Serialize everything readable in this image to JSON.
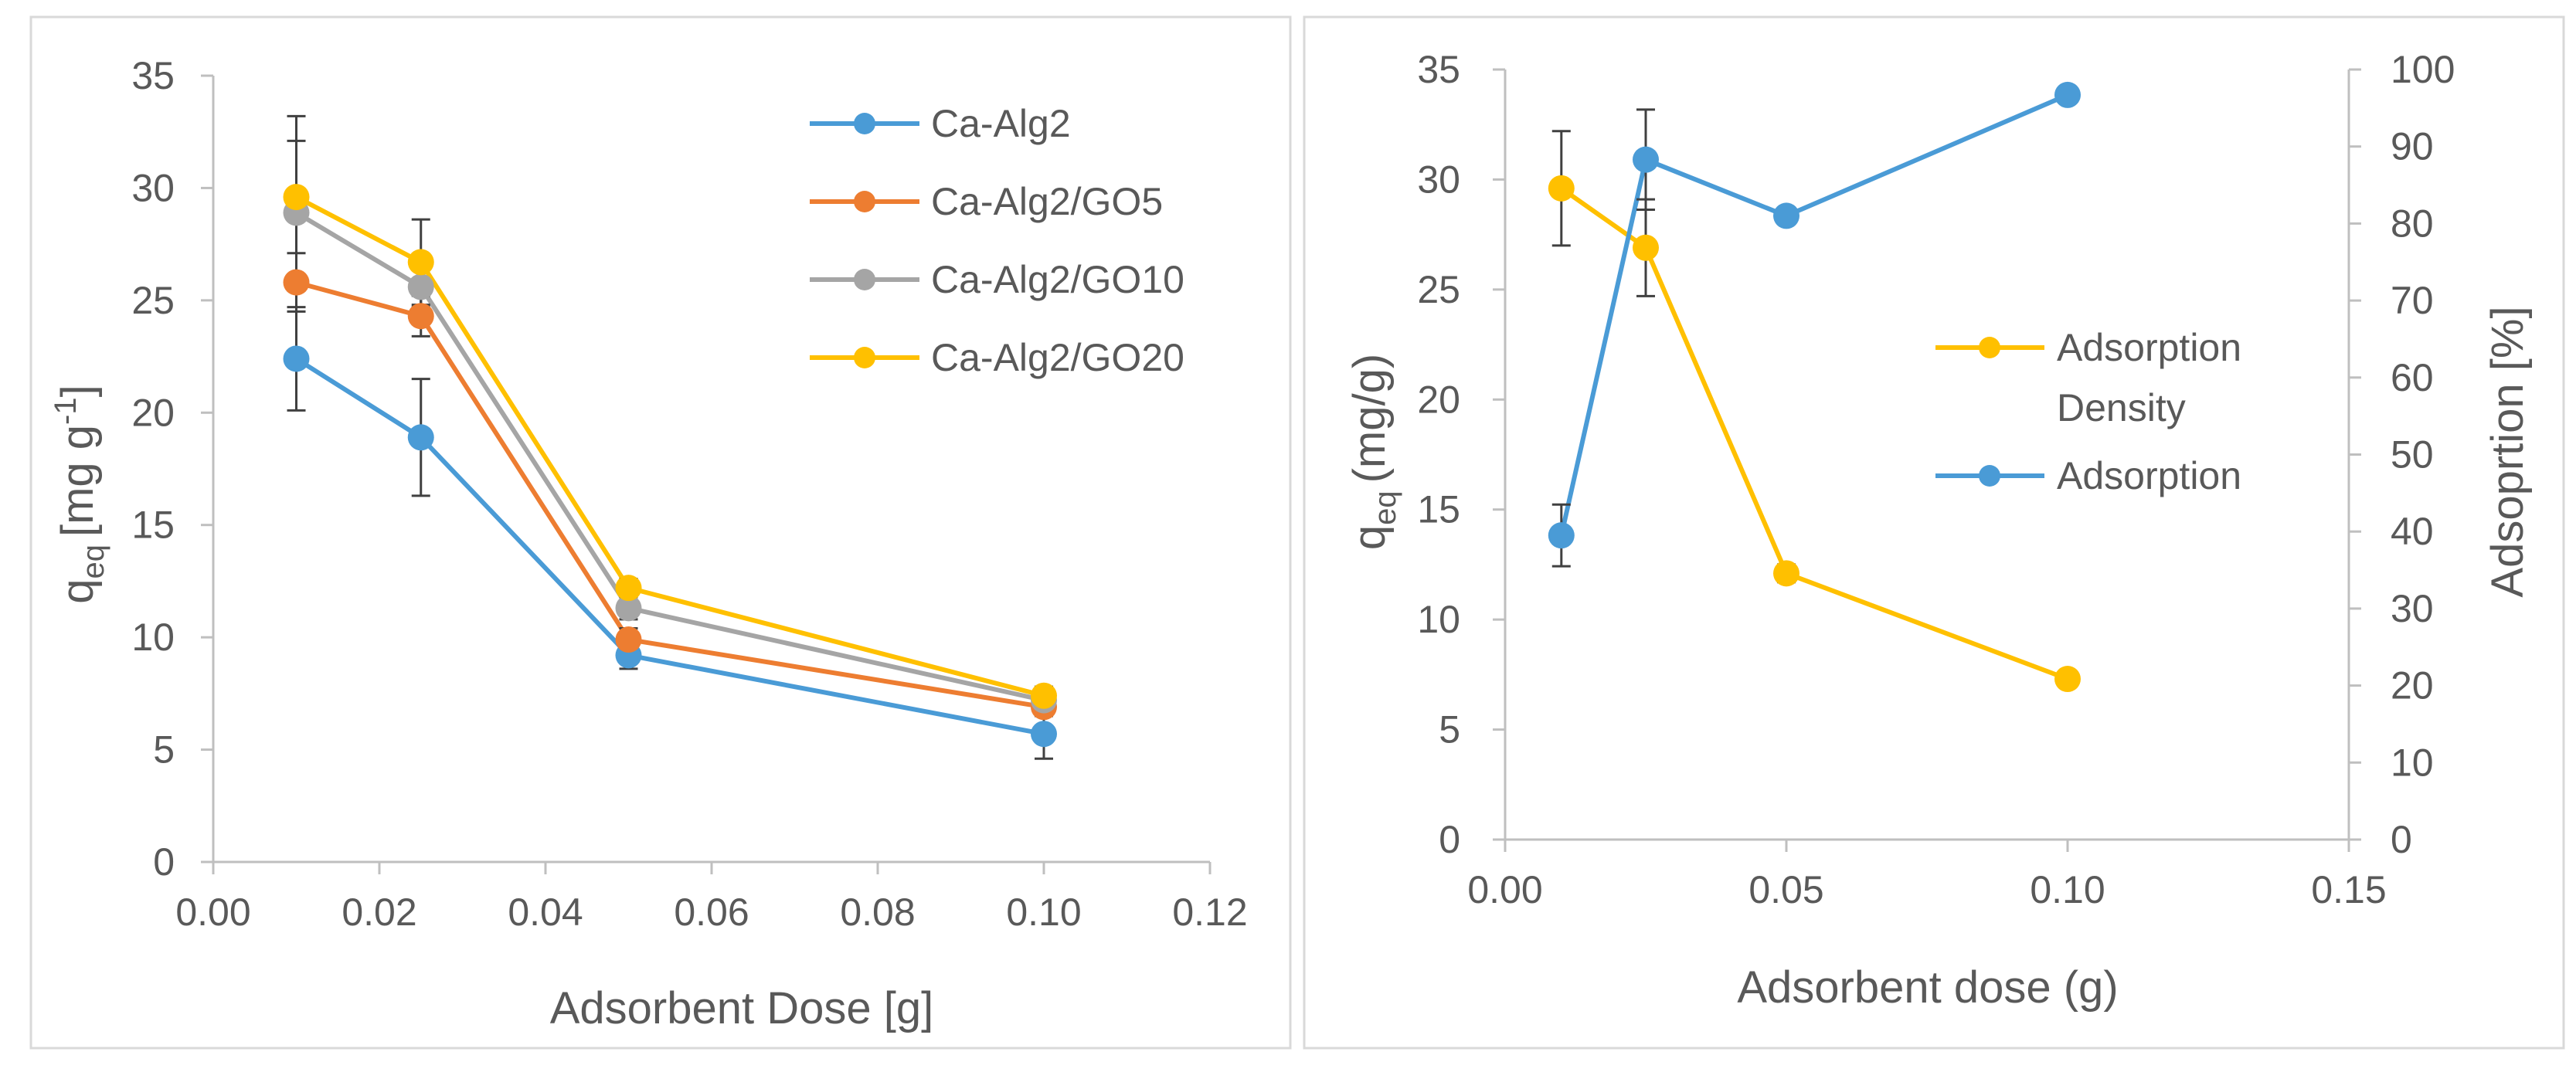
{
  "chart_data": [
    {
      "type": "line",
      "xlabel": "Adsorbent Dose [g]",
      "ylabel": {
        "base": "q",
        "sub": "eq",
        "unit": "[mg g",
        "sup": "-1",
        "close": "]"
      },
      "xlim": [
        0,
        0.12
      ],
      "ylim": [
        0,
        35
      ],
      "xticks": [
        "0.00",
        "0.02",
        "0.04",
        "0.06",
        "0.08",
        "0.10",
        "0.12"
      ],
      "yticks": [
        "0",
        "5",
        "10",
        "15",
        "20",
        "25",
        "30",
        "35"
      ],
      "grid": false,
      "legend_position": "top-right",
      "x": [
        0.01,
        0.025,
        0.05,
        0.1
      ],
      "series": [
        {
          "name": "Ca-Alg2",
          "color": "#4a9bd6",
          "values": [
            22.4,
            18.9,
            9.2,
            5.7
          ],
          "errors": [
            2.3,
            2.6,
            0.6,
            1.1
          ]
        },
        {
          "name": "Ca-Alg2/GO5",
          "color": "#ed7d31",
          "values": [
            25.8,
            24.3,
            9.9,
            6.9
          ],
          "errors": [
            1.3,
            0.9,
            0.5,
            0.4
          ]
        },
        {
          "name": "Ca-Alg2/GO10",
          "color": "#a5a5a5",
          "values": [
            28.9,
            25.6,
            11.3,
            7.2
          ],
          "errors": [
            3.2,
            0.9,
            0.5,
            0.4
          ]
        },
        {
          "name": "Ca-Alg2/GO20",
          "color": "#ffc000",
          "values": [
            29.6,
            26.7,
            12.2,
            7.4
          ],
          "errors": [
            3.6,
            1.9,
            0.4,
            0.4
          ]
        }
      ]
    },
    {
      "type": "line",
      "xlabel": "Adsorbent dose (g)",
      "ylabel": {
        "base": "q",
        "sub": "eq",
        "unit": "(mg/g)"
      },
      "y2label": "Adsoprtion [%]",
      "xlim": [
        0,
        0.15
      ],
      "ylim": [
        0,
        35
      ],
      "y2lim": [
        0,
        100
      ],
      "xticks": [
        "0.00",
        "0.05",
        "0.10",
        "0.15"
      ],
      "yticks": [
        "0",
        "5",
        "10",
        "15",
        "20",
        "25",
        "30",
        "35"
      ],
      "y2ticks": [
        "0",
        "10",
        "20",
        "30",
        "40",
        "50",
        "60",
        "70",
        "80",
        "90",
        "100"
      ],
      "grid": false,
      "legend_position": "right",
      "x": [
        0.01,
        0.025,
        0.05,
        0.1
      ],
      "series": [
        {
          "name": "Adsorption Density",
          "name_lines": [
            "Adsorption",
            "Density"
          ],
          "axis": "left",
          "color": "#ffc000",
          "values": [
            29.6,
            26.9,
            12.1,
            7.3
          ],
          "errors": [
            2.6,
            2.2,
            0.4,
            0.0
          ]
        },
        {
          "name": "Adsorption",
          "name_lines": [
            "Adsorption"
          ],
          "axis": "right",
          "color": "#4a9bd6",
          "values": [
            39.5,
            88.3,
            81.0,
            96.7
          ],
          "errors": [
            4.0,
            6.5,
            0.8,
            1.0
          ]
        }
      ]
    }
  ]
}
